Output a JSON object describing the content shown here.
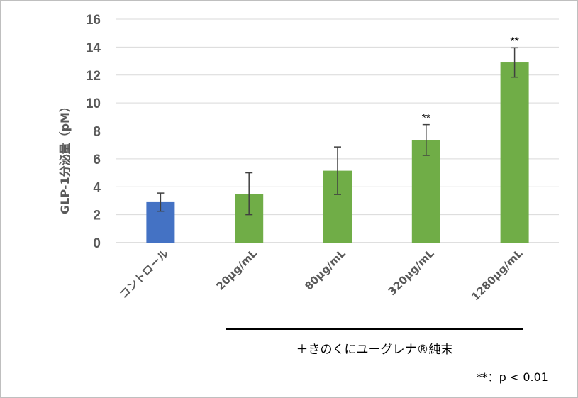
{
  "chart_data": {
    "type": "bar",
    "ylabel": "GLP-1分泌量（pM）",
    "xlabel": "",
    "ylim": [
      0,
      16
    ],
    "yticks": [
      0,
      2,
      4,
      6,
      8,
      10,
      12,
      14,
      16
    ],
    "grid": true,
    "categories": [
      "コントロール",
      "20μg/mL",
      "80μg/mL",
      "320μg/mL",
      "1280μg/mL"
    ],
    "values": [
      2.9,
      3.5,
      5.15,
      7.35,
      12.9
    ],
    "errors": [
      0.65,
      1.5,
      1.7,
      1.1,
      1.05
    ],
    "significance": [
      "",
      "",
      "",
      "**",
      "**"
    ],
    "colors": [
      "#4472c4",
      "#70ad47",
      "#70ad47",
      "#70ad47",
      "#70ad47"
    ]
  },
  "treatment_label": "＋きのくにユーグレナ®純末",
  "significance_note": "**：p < 0.01"
}
